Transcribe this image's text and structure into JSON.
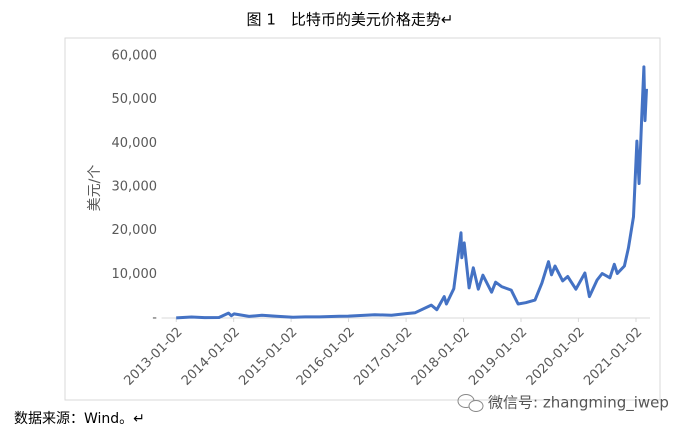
{
  "chart_data": {
    "type": "line",
    "title": "图 1　比特币的美元价格走势↵",
    "y_label": "美元/个",
    "source": "数据来源：Wind。↵",
    "watermark": "微信号: zhangming_iwep",
    "x": [
      "2013-01-02",
      "2013-04-09",
      "2013-07-01",
      "2013-10-01",
      "2013-11-30",
      "2013-12-18",
      "2014-01-05",
      "2014-04-10",
      "2014-07-01",
      "2014-10-01",
      "2015-01-14",
      "2015-04-01",
      "2015-07-01",
      "2015-11-04",
      "2016-01-01",
      "2016-06-17",
      "2016-10-01",
      "2017-01-02",
      "2017-03-01",
      "2017-06-11",
      "2017-07-16",
      "2017-09-01",
      "2017-09-15",
      "2017-11-01",
      "2017-12-17",
      "2017-12-22",
      "2018-01-06",
      "2018-02-06",
      "2018-03-05",
      "2018-04-06",
      "2018-05-05",
      "2018-06-29",
      "2018-07-25",
      "2018-09-01",
      "2018-11-01",
      "2018-12-15",
      "2019-02-01",
      "2019-04-01",
      "2019-05-15",
      "2019-06-26",
      "2019-07-15",
      "2019-08-06",
      "2019-09-24",
      "2019-10-26",
      "2019-12-17",
      "2020-02-12",
      "2020-03-12",
      "2020-04-30",
      "2020-06-01",
      "2020-07-20",
      "2020-08-17",
      "2020-09-05",
      "2020-10-20",
      "2020-11-15",
      "2020-12-17",
      "2021-01-08",
      "2021-01-22",
      "2021-02-08",
      "2021-02-21",
      "2021-02-28",
      "2021-03-10"
    ],
    "series": [
      {
        "name": "比特币",
        "color": "#4472c4",
        "values": [
          13,
          230,
          90,
          125,
          1130,
          520,
          950,
          360,
          640,
          380,
          180,
          250,
          260,
          410,
          430,
          750,
          610,
          1000,
          1220,
          2950,
          1900,
          4900,
          3200,
          6700,
          19500,
          13800,
          17200,
          6900,
          11500,
          6600,
          9800,
          5900,
          8200,
          7200,
          6400,
          3200,
          3500,
          4100,
          8000,
          12900,
          9900,
          11900,
          8500,
          9500,
          6600,
          10300,
          4900,
          8700,
          10200,
          9200,
          12300,
          10200,
          11900,
          16000,
          23200,
          40500,
          30800,
          46400,
          57500,
          45200,
          52500
        ]
      }
    ],
    "xlim": [
      "2012-10-01",
      "2021-04-01"
    ],
    "xticks": [
      "2013-01-02",
      "2014-01-02",
      "2015-01-02",
      "2016-01-02",
      "2017-01-02",
      "2018-01-02",
      "2019-01-02",
      "2020-01-02",
      "2021-01-02"
    ],
    "ylim": [
      0,
      60000
    ],
    "yticks": [
      {
        "value": 0,
        "label": "-"
      },
      {
        "value": 10000,
        "label": "10,000"
      },
      {
        "value": 20000,
        "label": "20,000"
      },
      {
        "value": 30000,
        "label": "30,000"
      },
      {
        "value": 40000,
        "label": "40,000"
      },
      {
        "value": 50000,
        "label": "50,000"
      },
      {
        "value": 60000,
        "label": "60,000"
      }
    ]
  }
}
